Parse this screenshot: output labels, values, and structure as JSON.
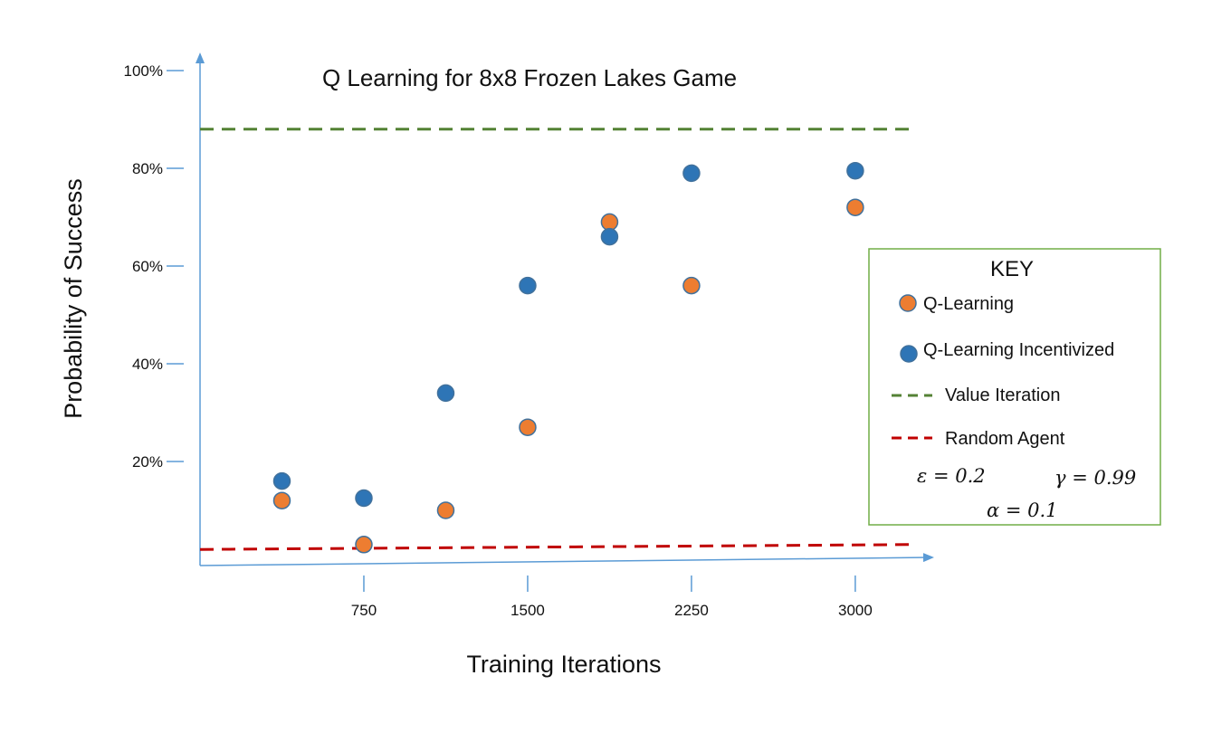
{
  "chart_data": {
    "type": "scatter",
    "title": "Q Learning for 8x8 Frozen Lakes Game",
    "xlabel": "Training Iterations",
    "ylabel": "Probability of Success",
    "x_ticks": [
      {
        "value": 750,
        "label": "750"
      },
      {
        "value": 1500,
        "label": "1500"
      },
      {
        "value": 2250,
        "label": "2250"
      },
      {
        "value": 3000,
        "label": "3000"
      }
    ],
    "y_ticks": [
      {
        "value": 20,
        "label": "20%"
      },
      {
        "value": 40,
        "label": "40%"
      },
      {
        "value": 60,
        "label": "60%"
      },
      {
        "value": 80,
        "label": "80%"
      },
      {
        "value": 100,
        "label": "100%"
      }
    ],
    "xlim": [
      0,
      3250
    ],
    "ylim": [
      0,
      100
    ],
    "grid": false,
    "legend_placement": "right",
    "series": [
      {
        "name": "Q-Learning",
        "kind": "points",
        "color": "#ED7D31",
        "points": [
          {
            "x": 375,
            "y": 12
          },
          {
            "x": 750,
            "y": 3
          },
          {
            "x": 1125,
            "y": 10
          },
          {
            "x": 1500,
            "y": 27
          },
          {
            "x": 1875,
            "y": 69
          },
          {
            "x": 2250,
            "y": 56
          },
          {
            "x": 3000,
            "y": 72
          }
        ]
      },
      {
        "name": "Q-Learning Incentivized",
        "kind": "points",
        "color": "#2E75B6",
        "points": [
          {
            "x": 375,
            "y": 16
          },
          {
            "x": 750,
            "y": 12.5
          },
          {
            "x": 1125,
            "y": 34
          },
          {
            "x": 1500,
            "y": 56
          },
          {
            "x": 1875,
            "y": 66
          },
          {
            "x": 2250,
            "y": 79
          },
          {
            "x": 3000,
            "y": 79.5
          }
        ]
      },
      {
        "name": "Value Iteration",
        "kind": "dashed-line",
        "color": "#548235",
        "points": [
          {
            "x": 0,
            "y": 88
          },
          {
            "x": 3250,
            "y": 88
          }
        ]
      },
      {
        "name": "Random Agent",
        "kind": "dashed-line",
        "color": "#C00000",
        "points": [
          {
            "x": 0,
            "y": 2
          },
          {
            "x": 3250,
            "y": 3
          }
        ]
      }
    ],
    "legend": {
      "title": "KEY",
      "params": {
        "epsilon": "ε = 0.2",
        "gamma": "γ = 0.99",
        "alpha": "α = 0.1"
      }
    }
  },
  "colors": {
    "axis": "#5B9BD5",
    "legend_border": "#70AD47",
    "marker_edge": "#41719C"
  }
}
